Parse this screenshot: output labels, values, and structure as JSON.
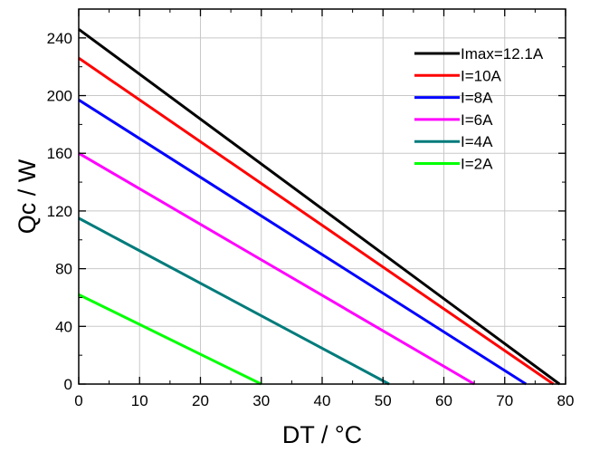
{
  "chart_data": {
    "type": "line",
    "title": "",
    "xlabel": "DT / °C",
    "ylabel": "Qc / W",
    "xlim": [
      0,
      80
    ],
    "ylim": [
      0,
      260
    ],
    "x_ticks": [
      0,
      10,
      20,
      30,
      40,
      50,
      60,
      70,
      80
    ],
    "y_ticks": [
      0,
      40,
      80,
      120,
      160,
      200,
      240
    ],
    "grid": true,
    "legend_position": "top-right",
    "series": [
      {
        "name": "Imax=12.1A",
        "color": "#000000",
        "x": [
          0,
          79
        ],
        "y": [
          246,
          0
        ]
      },
      {
        "name": "I=10A",
        "color": "#ff0000",
        "x": [
          0,
          78
        ],
        "y": [
          226,
          0
        ]
      },
      {
        "name": "I=8A",
        "color": "#0000ff",
        "x": [
          0,
          73.5
        ],
        "y": [
          197,
          0
        ]
      },
      {
        "name": "I=6A",
        "color": "#ff00ff",
        "x": [
          0,
          65
        ],
        "y": [
          160,
          0
        ]
      },
      {
        "name": "I=4A",
        "color": "#007b7b",
        "x": [
          0,
          51
        ],
        "y": [
          115,
          0
        ]
      },
      {
        "name": "I=2A",
        "color": "#00ff00",
        "x": [
          0,
          30
        ],
        "y": [
          62,
          0
        ]
      }
    ]
  }
}
